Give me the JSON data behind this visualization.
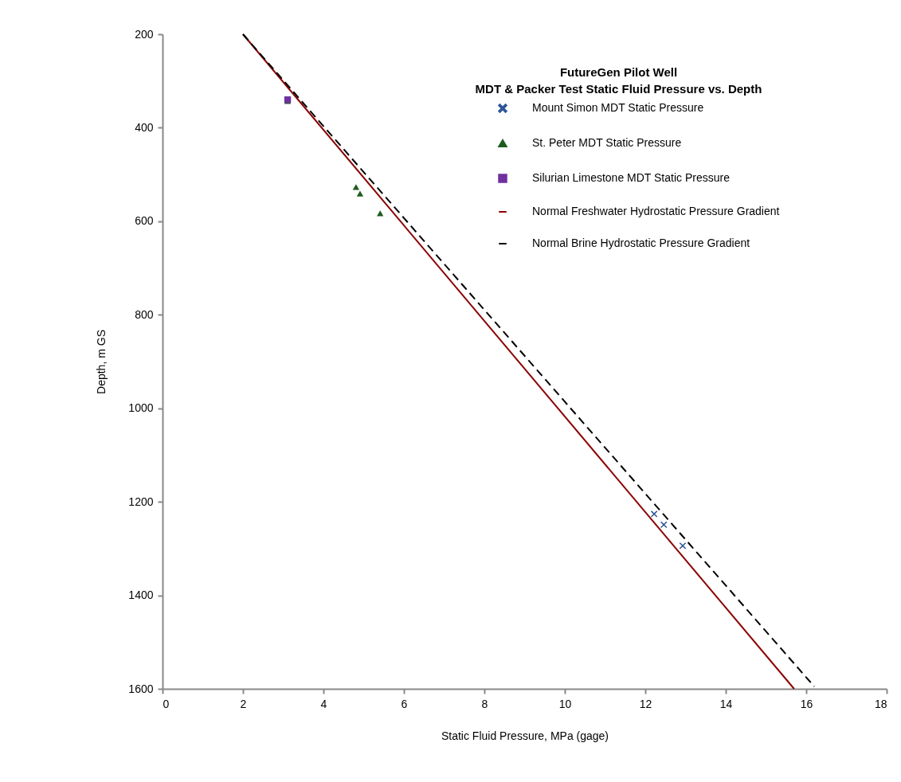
{
  "chart_data": {
    "type": "scatter",
    "title": "FutureGen Pilot Well",
    "subtitle": "MDT & Packer Test Static Fluid Pressure vs. Depth",
    "xlabel": "Static Fluid Pressure, MPa (gage)",
    "ylabel": "Depth, m GS",
    "xlim": [
      0,
      18
    ],
    "xticks": [
      0,
      2,
      4,
      6,
      8,
      10,
      12,
      14,
      16,
      18
    ],
    "ylim": [
      1600,
      200
    ],
    "yticks": [
      200,
      400,
      600,
      800,
      1000,
      1200,
      1400,
      1600
    ],
    "grid": false,
    "legend": "top right",
    "series": [
      {
        "name": "Mount Simon MDT Static Pressure",
        "marker": "cross",
        "color": "#2f5597",
        "x": [
          12.22,
          12.46,
          12.93
        ],
        "values": [
          1226,
          1249,
          1294
        ]
      },
      {
        "name": "St. Peter MDT Static Pressure",
        "marker": "triangle",
        "color": "#1e5c1e",
        "x": [
          3.11,
          4.81,
          4.91,
          5.41
        ],
        "values": [
          343,
          527,
          541,
          583
        ]
      },
      {
        "name": "Silurian Limestone MDT Static Pressure",
        "marker": "square",
        "color": "#7030a0",
        "x": [
          3.11
        ],
        "values": [
          340
        ]
      },
      {
        "name": "Normal Freshwater Hydrostatic Pressure Gradient",
        "type": "line",
        "line_style": "solid",
        "color": "#8b0000",
        "x": [
          2,
          15.7
        ],
        "values": [
          200,
          1600
        ]
      },
      {
        "name": "Normal Brine Hydrostatic Pressure Gradient",
        "type": "line",
        "line_style": "dashed",
        "color": "#000000",
        "x": [
          2,
          16.2
        ],
        "values": [
          200,
          1595
        ]
      }
    ]
  }
}
